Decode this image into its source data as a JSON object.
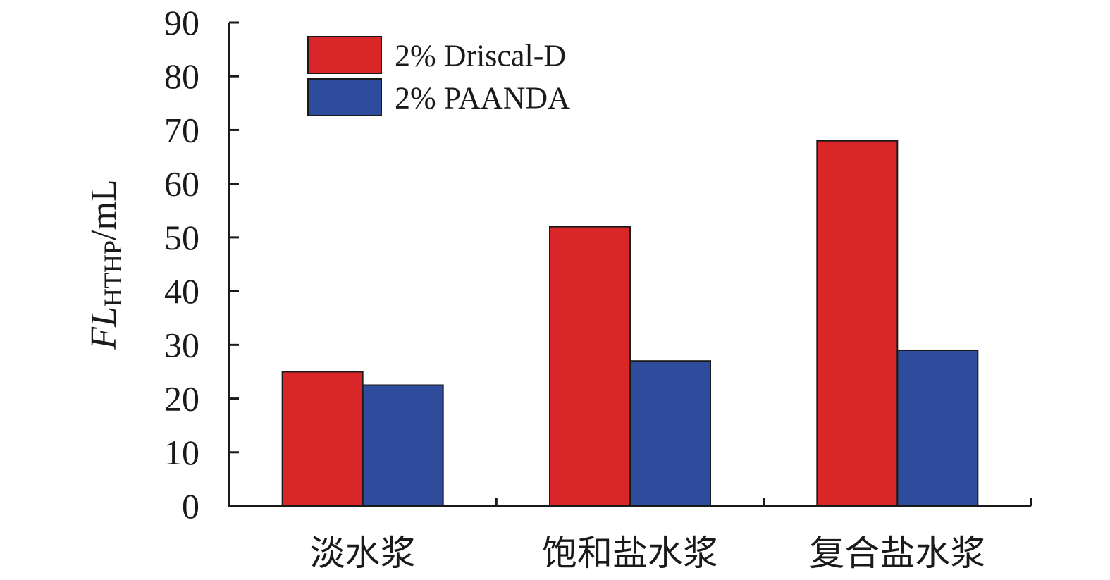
{
  "chart_data": {
    "type": "bar",
    "categories": [
      "淡水浆",
      "饱和盐水浆",
      "复合盐水浆"
    ],
    "series": [
      {
        "name": "2% Driscal-D",
        "values": [
          25,
          52,
          68
        ],
        "color": "#d92628"
      },
      {
        "name": "2% PAANDA",
        "values": [
          22.5,
          27,
          29
        ],
        "color": "#2f4b9b"
      }
    ],
    "ylabel": {
      "main": "FL",
      "sub": "HTHP",
      "unit": "/mL"
    },
    "ylim": [
      0,
      90
    ],
    "yticks": [
      0,
      10,
      20,
      30,
      40,
      50,
      60,
      70,
      80,
      90
    ],
    "grid": false,
    "legend_position": "top-left"
  }
}
